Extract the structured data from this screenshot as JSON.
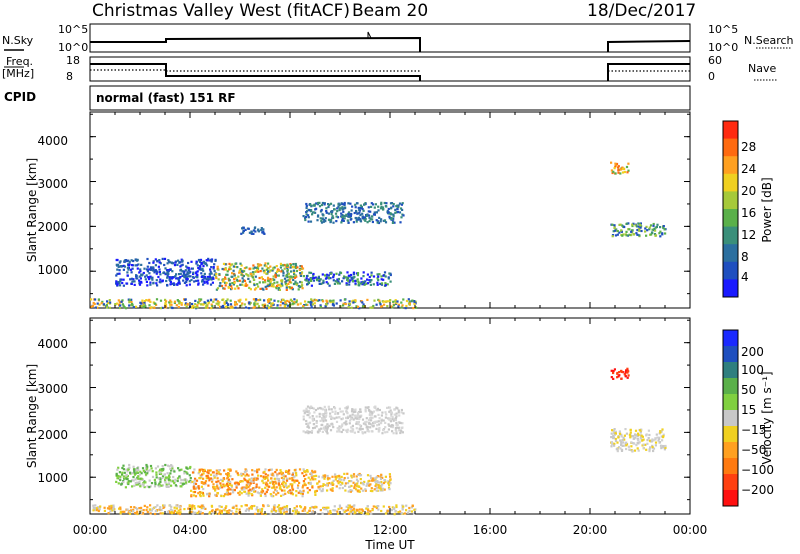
{
  "header": {
    "station": "Christmas Valley West (fitACF)",
    "beam": "Beam 20",
    "date": "18/Dec/2017"
  },
  "sky_panel": {
    "left_label": "N.Sky",
    "right_label": "N.Search",
    "left_ticks": [
      "10^5",
      "10^0"
    ],
    "right_ticks": [
      "10^5",
      "10^0"
    ]
  },
  "freq_panel": {
    "left_label_1": "Freq.",
    "left_label_2": "[MHz]",
    "left_ticks": [
      "18",
      "8"
    ],
    "right_ticks": [
      "60",
      "0"
    ],
    "right_label": "Nave"
  },
  "cpid": {
    "label": "CPID",
    "mode": "normal (fast) 151 RF"
  },
  "x_axis": {
    "title": "Time UT",
    "ticks": [
      "00:00",
      "04:00",
      "08:00",
      "12:00",
      "16:00",
      "20:00",
      "00:00"
    ]
  },
  "power_panel": {
    "ylabel": "Slant Range [km]",
    "yticks": [
      "1000",
      "2000",
      "3000",
      "4000"
    ],
    "colorbar_label": "Power [dB]",
    "colorbar_ticks": [
      "4",
      "8",
      "12",
      "16",
      "20",
      "24",
      "28"
    ],
    "colorbar_colors": [
      "#1a1aff",
      "#1f4fbf",
      "#2b6f9f",
      "#3a8f7a",
      "#5ab04a",
      "#a6c93a",
      "#f0d020",
      "#ffa020",
      "#ff6a10",
      "#ff2a10"
    ]
  },
  "velocity_panel": {
    "ylabel": "Slant Range [km]",
    "yticks": [
      "1000",
      "2000",
      "3000",
      "4000"
    ],
    "colorbar_label": "Velocity [m s⁻¹]",
    "colorbar_ticks": [
      "200",
      "100",
      "50",
      "15",
      "−15",
      "−50",
      "−100",
      "−200"
    ],
    "colorbar_colors": [
      "#1a2aff",
      "#1f4fbf",
      "#2f7f7f",
      "#5ab04a",
      "#80d040",
      "#c8c8c8",
      "#f0d020",
      "#ffa020",
      "#ff7a10",
      "#ff4010",
      "#ff1010"
    ]
  },
  "chart_data": [
    {
      "type": "heatmap",
      "title": "Power",
      "x_range_hours_UT": [
        0,
        24
      ],
      "y_range_km": [
        180,
        4550
      ],
      "colorbar_range_dB": [
        0,
        30
      ],
      "echo_regions": [
        {
          "t_start": 1.0,
          "t_end": 5.0,
          "range_km": [
            700,
            1300
          ],
          "level": "low-mid"
        },
        {
          "t_start": 5.0,
          "t_end": 8.5,
          "range_km": [
            600,
            1200
          ],
          "level": "high (up to ~20 dB)"
        },
        {
          "t_start": 8.5,
          "t_end": 12.0,
          "range_km": [
            700,
            1000
          ],
          "level": "low-mid"
        },
        {
          "t_start": 6.0,
          "t_end": 7.0,
          "range_km": [
            1850,
            2000
          ],
          "level": "low"
        },
        {
          "t_start": 8.5,
          "t_end": 12.5,
          "range_km": [
            2100,
            2550
          ],
          "level": "low"
        },
        {
          "t_start": 0.0,
          "t_end": 13.0,
          "range_km": [
            200,
            400
          ],
          "level": "ground scatter"
        },
        {
          "t_start": 20.8,
          "t_end": 21.5,
          "range_km": [
            3200,
            3450
          ],
          "level": "high (~24 dB)"
        },
        {
          "t_start": 20.8,
          "t_end": 23.0,
          "range_km": [
            1800,
            2100
          ],
          "level": "mid"
        }
      ]
    },
    {
      "type": "heatmap",
      "title": "Velocity",
      "x_range_hours_UT": [
        0,
        24
      ],
      "y_range_km": [
        180,
        4550
      ],
      "colorbar_range_ms": [
        -250,
        250
      ],
      "echo_regions": [
        {
          "t_start": 1.0,
          "t_end": 4.0,
          "range_km": [
            800,
            1300
          ],
          "velocity": "~15 to 50 (green)"
        },
        {
          "t_start": 4.0,
          "t_end": 9.0,
          "range_km": [
            600,
            1200
          ],
          "velocity": "~-50 (orange)"
        },
        {
          "t_start": 9.0,
          "t_end": 12.0,
          "range_km": [
            700,
            1100
          ],
          "velocity": "~-15 to -50"
        },
        {
          "t_start": 8.5,
          "t_end": 12.5,
          "range_km": [
            2000,
            2600
          ],
          "velocity": "~0 (grey)"
        },
        {
          "t_start": 0.0,
          "t_end": 13.0,
          "range_km": [
            200,
            400
          ],
          "velocity": "~0 to -15"
        },
        {
          "t_start": 20.8,
          "t_end": 21.5,
          "range_km": [
            3200,
            3450
          ],
          "velocity": "~-200 (red)"
        },
        {
          "t_start": 20.8,
          "t_end": 23.0,
          "range_km": [
            1600,
            2100
          ],
          "velocity": "~0 (grey)"
        }
      ]
    }
  ]
}
